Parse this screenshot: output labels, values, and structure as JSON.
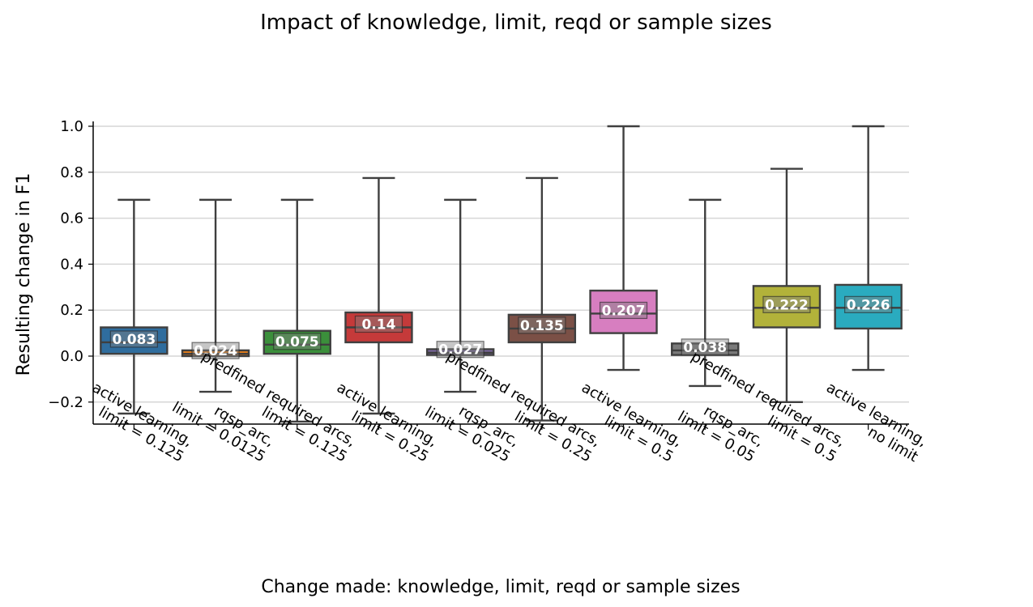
{
  "chart_data": {
    "type": "box",
    "title": "Impact of knowledge, limit, reqd or sample sizes",
    "xlabel": "Change made: knowledge, limit, reqd or sample sizes",
    "ylabel": "Resulting change in F1",
    "ylim": [
      -0.3,
      1.02
    ],
    "yticks": [
      -0.2,
      0.0,
      0.2,
      0.4,
      0.6,
      0.8,
      1.0
    ],
    "ytick_labels": [
      "−0.2",
      "0.0",
      "0.2",
      "0.4",
      "0.6",
      "0.8",
      "1.0"
    ],
    "grid": "horizontal",
    "categories": [
      [
        "active learning,",
        "limit = 0.125"
      ],
      [
        "rqsp_arc,",
        "limit = 0.0125"
      ],
      [
        "predfined required arcs,",
        "limit = 0.125"
      ],
      [
        "active learning,",
        "limit = 0.25"
      ],
      [
        "rqsp_arc,",
        "limit = 0.025"
      ],
      [
        "predfined required arcs,",
        "limit = 0.25"
      ],
      [
        "active learning,",
        "limit = 0.5"
      ],
      [
        "rqsp_arc,",
        "limit = 0.05"
      ],
      [
        "predfined required arcs,",
        "limit = 0.5"
      ],
      [
        "active learning,",
        "no limit"
      ]
    ],
    "boxes": [
      {
        "whislo": -0.25,
        "q1": 0.01,
        "med": 0.06,
        "q3": 0.125,
        "whishi": 0.68,
        "label": "0.083",
        "color": "#2f6d9e"
      },
      {
        "whislo": -0.155,
        "q1": 0.0,
        "med": 0.01,
        "q3": 0.025,
        "whishi": 0.68,
        "label": "0.024",
        "color": "#e27c1b"
      },
      {
        "whislo": -0.285,
        "q1": 0.01,
        "med": 0.05,
        "q3": 0.11,
        "whishi": 0.68,
        "label": "0.075",
        "color": "#3b8f3b"
      },
      {
        "whislo": -0.25,
        "q1": 0.06,
        "med": 0.125,
        "q3": 0.19,
        "whishi": 0.775,
        "label": "0.14",
        "color": "#c53a3a"
      },
      {
        "whislo": -0.155,
        "q1": 0.005,
        "med": 0.015,
        "q3": 0.03,
        "whishi": 0.68,
        "label": "0.027",
        "color": "#7f6aa6"
      },
      {
        "whislo": -0.28,
        "q1": 0.06,
        "med": 0.12,
        "q3": 0.18,
        "whishi": 0.775,
        "label": "0.135",
        "color": "#7b5046"
      },
      {
        "whislo": -0.06,
        "q1": 0.1,
        "med": 0.185,
        "q3": 0.285,
        "whishi": 1.0,
        "label": "0.207",
        "color": "#d77ec0"
      },
      {
        "whislo": -0.13,
        "q1": 0.005,
        "med": 0.025,
        "q3": 0.055,
        "whishi": 0.68,
        "label": "0.038",
        "color": "#7a7a7a"
      },
      {
        "whislo": -0.2,
        "q1": 0.125,
        "med": 0.21,
        "q3": 0.305,
        "whishi": 0.815,
        "label": "0.222",
        "color": "#b2b23a"
      },
      {
        "whislo": -0.06,
        "q1": 0.12,
        "med": 0.21,
        "q3": 0.31,
        "whishi": 1.0,
        "label": "0.226",
        "color": "#2aabbf"
      }
    ]
  }
}
